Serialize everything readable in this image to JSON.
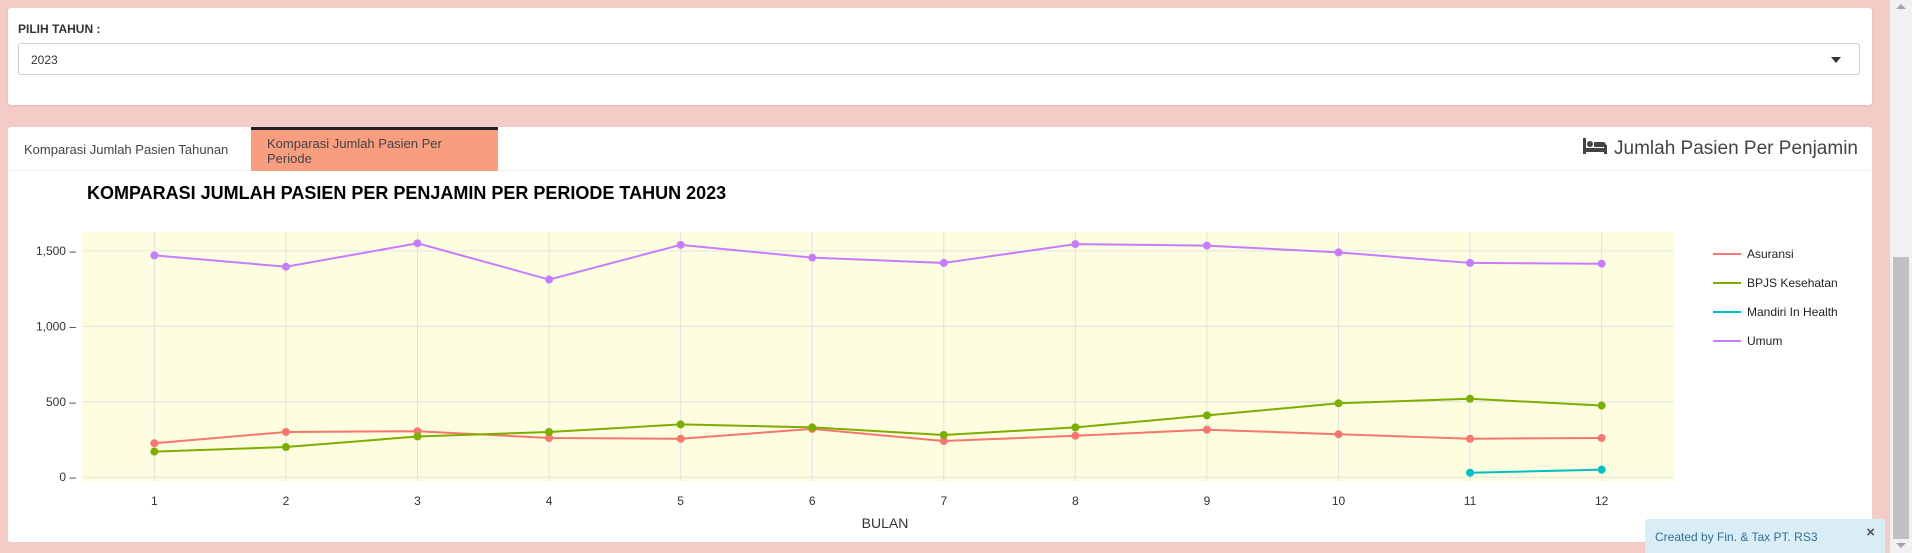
{
  "filter": {
    "label": "PILIH TAHUN :",
    "selected": "2023"
  },
  "tabs": [
    {
      "label": "Komparasi Jumlah Pasien Tahunan",
      "active": false
    },
    {
      "label": "Komparasi Jumlah Pasien Per Periode",
      "active": true
    }
  ],
  "panel": {
    "title": "Jumlah Pasien Per Penjamin",
    "icon": "bed-icon"
  },
  "colors": {
    "tab_active": "#f99d80",
    "plot_bg": "#fdfde0"
  },
  "chart_data": {
    "type": "line",
    "title": "KOMPARASI JUMLAH PASIEN PER PENJAMIN PER PERIODE TAHUN 2023",
    "xlabel": "BULAN",
    "ylabel": "",
    "x": [
      1,
      2,
      3,
      4,
      5,
      6,
      7,
      8,
      9,
      10,
      11,
      12
    ],
    "ylim": [
      -25,
      1625
    ],
    "yticks": [
      0,
      500,
      1000,
      1500
    ],
    "ytick_labels": [
      "0",
      "500",
      "1,000",
      "1,500"
    ],
    "grid": true,
    "legend": "right",
    "series": [
      {
        "name": "Asuransi",
        "color": "#f8766d",
        "x": [
          1,
          2,
          3,
          4,
          5,
          6,
          7,
          8,
          9,
          10,
          11,
          12
        ],
        "values": [
          225,
          300,
          305,
          260,
          255,
          320,
          240,
          275,
          315,
          285,
          255,
          260
        ]
      },
      {
        "name": "BPJS Kesehatan",
        "color": "#7cae00",
        "x": [
          1,
          2,
          3,
          4,
          5,
          6,
          7,
          8,
          9,
          10,
          11,
          12
        ],
        "values": [
          170,
          200,
          270,
          300,
          350,
          330,
          280,
          330,
          410,
          490,
          520,
          475
        ]
      },
      {
        "name": "Mandiri In Health",
        "color": "#00bfc4",
        "x": [
          11,
          12
        ],
        "values": [
          30,
          50
        ]
      },
      {
        "name": "Umum",
        "color": "#c77cff",
        "x": [
          1,
          2,
          3,
          4,
          5,
          6,
          7,
          8,
          9,
          10,
          11,
          12
        ],
        "values": [
          1470,
          1395,
          1550,
          1310,
          1540,
          1455,
          1420,
          1545,
          1535,
          1490,
          1420,
          1415
        ]
      }
    ]
  },
  "footer": {
    "text": "Created by Fin. & Tax PT. RS3",
    "close": "×"
  }
}
